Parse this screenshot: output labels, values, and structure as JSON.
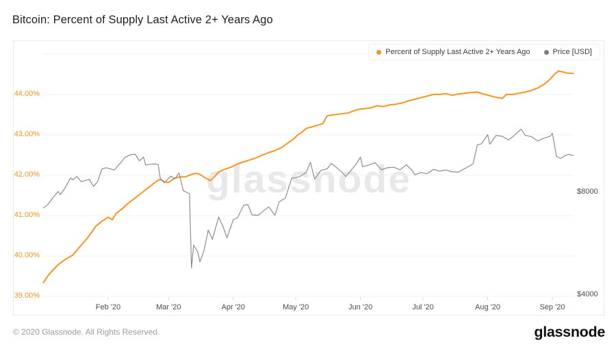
{
  "page": {
    "title": "Bitcoin: Percent of Supply Last Active 2+ Years Ago",
    "watermark": "glassnode",
    "footer": {
      "copyright": "© 2020 Glassnode. All Rights Reserved.",
      "brand": "glassnode"
    }
  },
  "legend": {
    "items": [
      {
        "label": "Percent of Supply Last Active 2+ Years Ago",
        "color": "#f7941c"
      },
      {
        "label": "Price [USD]",
        "color": "#7d7d7d"
      }
    ]
  },
  "chart_data": {
    "type": "line",
    "title": "Bitcoin: Percent of Supply Last Active 2+ Years Ago",
    "x_unit": "days since 2020-01-01",
    "x_range": [
      "2020-01-01",
      "2020-09-11"
    ],
    "grid": "horizontal-only",
    "legend_position": "top-right",
    "x_ticks": [
      {
        "day": 31,
        "label": "Feb '20"
      },
      {
        "day": 60,
        "label": "Mar '20"
      },
      {
        "day": 91,
        "label": "Apr '20"
      },
      {
        "day": 121,
        "label": "May '20"
      },
      {
        "day": 152,
        "label": "Jun '20"
      },
      {
        "day": 182,
        "label": "Jul '20"
      },
      {
        "day": 213,
        "label": "Aug '20"
      },
      {
        "day": 244,
        "label": "Sep '20"
      }
    ],
    "y_left": {
      "title": "Percent of Supply Last Active 2+ Years Ago",
      "range": [
        38.95,
        45.0
      ],
      "gridlines": [
        39,
        40,
        41,
        42,
        43,
        44,
        45
      ],
      "ticks": [
        {
          "value": 39,
          "label": "39.00%"
        },
        {
          "value": 40,
          "label": "40.00%"
        },
        {
          "value": 41,
          "label": "41.00%"
        },
        {
          "value": 42,
          "label": "42.00%"
        },
        {
          "value": 43,
          "label": "43.00%"
        },
        {
          "value": 44,
          "label": "44.00%"
        }
      ]
    },
    "y_right": {
      "title": "Price [USD]",
      "scale": "log2",
      "ticks": [
        {
          "value": 8000,
          "label": "$8000"
        },
        {
          "value": 4000,
          "label": "$4000"
        }
      ]
    },
    "series": [
      {
        "name": "Percent of Supply Last Active 2+ Years Ago",
        "axis": "left",
        "color": "#f7941c",
        "width": 2,
        "points": [
          [
            0,
            39.34
          ],
          [
            2,
            39.5
          ],
          [
            4,
            39.62
          ],
          [
            7,
            39.78
          ],
          [
            9,
            39.86
          ],
          [
            11,
            39.93
          ],
          [
            14,
            40.02
          ],
          [
            16,
            40.14
          ],
          [
            18,
            40.26
          ],
          [
            21,
            40.44
          ],
          [
            23,
            40.58
          ],
          [
            25,
            40.73
          ],
          [
            28,
            40.86
          ],
          [
            31,
            40.96
          ],
          [
            33,
            40.9
          ],
          [
            35,
            41.06
          ],
          [
            38,
            41.18
          ],
          [
            40,
            41.28
          ],
          [
            42,
            41.36
          ],
          [
            45,
            41.48
          ],
          [
            47,
            41.56
          ],
          [
            50,
            41.68
          ],
          [
            52,
            41.76
          ],
          [
            54,
            41.84
          ],
          [
            56,
            41.9
          ],
          [
            58,
            41.83
          ],
          [
            60,
            41.82
          ],
          [
            63,
            41.93
          ],
          [
            66,
            41.96
          ],
          [
            68,
            41.96
          ],
          [
            70,
            42.0
          ],
          [
            73,
            42.05
          ],
          [
            75,
            42.02
          ],
          [
            77,
            41.95
          ],
          [
            80,
            41.87
          ],
          [
            82,
            41.96
          ],
          [
            84,
            42.08
          ],
          [
            87,
            42.15
          ],
          [
            90,
            42.2
          ],
          [
            93,
            42.28
          ],
          [
            96,
            42.33
          ],
          [
            99,
            42.38
          ],
          [
            102,
            42.43
          ],
          [
            105,
            42.5
          ],
          [
            108,
            42.56
          ],
          [
            111,
            42.61
          ],
          [
            114,
            42.68
          ],
          [
            117,
            42.79
          ],
          [
            120,
            42.9
          ],
          [
            122,
            43.0
          ],
          [
            124,
            43.07
          ],
          [
            126,
            43.16
          ],
          [
            129,
            43.2
          ],
          [
            132,
            43.25
          ],
          [
            134,
            43.28
          ],
          [
            136,
            43.47
          ],
          [
            138,
            43.49
          ],
          [
            140,
            43.5
          ],
          [
            143,
            43.52
          ],
          [
            146,
            43.54
          ],
          [
            148,
            43.58
          ],
          [
            151,
            43.63
          ],
          [
            154,
            43.65
          ],
          [
            157,
            43.67
          ],
          [
            160,
            43.72
          ],
          [
            163,
            43.7
          ],
          [
            166,
            43.74
          ],
          [
            169,
            43.76
          ],
          [
            172,
            43.79
          ],
          [
            175,
            43.84
          ],
          [
            178,
            43.88
          ],
          [
            181,
            43.92
          ],
          [
            184,
            43.96
          ],
          [
            187,
            44.0
          ],
          [
            190,
            44.0
          ],
          [
            193,
            44.02
          ],
          [
            196,
            43.98
          ],
          [
            199,
            44.01
          ],
          [
            202,
            44.03
          ],
          [
            205,
            44.05
          ],
          [
            208,
            44.06
          ],
          [
            211,
            44.01
          ],
          [
            214,
            43.97
          ],
          [
            217,
            43.93
          ],
          [
            220,
            43.9
          ],
          [
            222,
            44.0
          ],
          [
            225,
            44.0
          ],
          [
            228,
            44.03
          ],
          [
            231,
            44.06
          ],
          [
            234,
            44.1
          ],
          [
            237,
            44.16
          ],
          [
            240,
            44.25
          ],
          [
            243,
            44.38
          ],
          [
            245,
            44.5
          ],
          [
            247,
            44.58
          ],
          [
            249,
            44.56
          ],
          [
            251,
            44.53
          ],
          [
            254,
            44.52
          ]
        ]
      },
      {
        "name": "Price [USD]",
        "axis": "right",
        "color": "#8c8c8c",
        "width": 1.2,
        "points": [
          [
            0,
            7200
          ],
          [
            2,
            7350
          ],
          [
            5,
            7770
          ],
          [
            7,
            8050
          ],
          [
            8,
            7870
          ],
          [
            10,
            8170
          ],
          [
            13,
            8820
          ],
          [
            14,
            8700
          ],
          [
            16,
            8900
          ],
          [
            18,
            8600
          ],
          [
            20,
            8660
          ],
          [
            22,
            8730
          ],
          [
            24,
            8330
          ],
          [
            26,
            8600
          ],
          [
            28,
            9360
          ],
          [
            30,
            9440
          ],
          [
            32,
            9380
          ],
          [
            34,
            9300
          ],
          [
            36,
            9620
          ],
          [
            37,
            9750
          ],
          [
            39,
            10120
          ],
          [
            42,
            10330
          ],
          [
            44,
            10350
          ],
          [
            46,
            9900
          ],
          [
            48,
            10150
          ],
          [
            49,
            9620
          ],
          [
            51,
            9660
          ],
          [
            53,
            9690
          ],
          [
            55,
            9650
          ],
          [
            56,
            8800
          ],
          [
            58,
            8530
          ],
          [
            61,
            8920
          ],
          [
            63,
            8760
          ],
          [
            65,
            9120
          ],
          [
            67,
            8100
          ],
          [
            70,
            7910
          ],
          [
            71,
            4800
          ],
          [
            72,
            5600
          ],
          [
            74,
            5350
          ],
          [
            75,
            5000
          ],
          [
            77,
            5400
          ],
          [
            79,
            6200
          ],
          [
            81,
            5820
          ],
          [
            84,
            6770
          ],
          [
            86,
            6380
          ],
          [
            88,
            5880
          ],
          [
            91,
            6650
          ],
          [
            93,
            6740
          ],
          [
            96,
            7330
          ],
          [
            98,
            7360
          ],
          [
            100,
            6870
          ],
          [
            103,
            6850
          ],
          [
            106,
            7100
          ],
          [
            108,
            7250
          ],
          [
            111,
            6850
          ],
          [
            113,
            7500
          ],
          [
            116,
            7700
          ],
          [
            119,
            8800
          ],
          [
            121,
            8830
          ],
          [
            123,
            8900
          ],
          [
            126,
            9150
          ],
          [
            128,
            9800
          ],
          [
            130,
            8750
          ],
          [
            133,
            9270
          ],
          [
            136,
            9380
          ],
          [
            138,
            9720
          ],
          [
            140,
            9520
          ],
          [
            143,
            9180
          ],
          [
            145,
            8900
          ],
          [
            147,
            9200
          ],
          [
            150,
            9700
          ],
          [
            152,
            10150
          ],
          [
            153,
            9520
          ],
          [
            156,
            9620
          ],
          [
            159,
            9770
          ],
          [
            162,
            9320
          ],
          [
            165,
            9450
          ],
          [
            168,
            9480
          ],
          [
            171,
            9310
          ],
          [
            174,
            9630
          ],
          [
            177,
            9250
          ],
          [
            178,
            9010
          ],
          [
            181,
            9140
          ],
          [
            184,
            9070
          ],
          [
            187,
            9340
          ],
          [
            190,
            9230
          ],
          [
            193,
            9300
          ],
          [
            196,
            9190
          ],
          [
            199,
            9170
          ],
          [
            202,
            9390
          ],
          [
            204,
            9530
          ],
          [
            206,
            9700
          ],
          [
            208,
            11020
          ],
          [
            210,
            11100
          ],
          [
            213,
            11800
          ],
          [
            214,
            11070
          ],
          [
            217,
            11740
          ],
          [
            220,
            11680
          ],
          [
            223,
            11390
          ],
          [
            226,
            11780
          ],
          [
            229,
            12250
          ],
          [
            231,
            11750
          ],
          [
            234,
            11650
          ],
          [
            237,
            11320
          ],
          [
            240,
            11530
          ],
          [
            243,
            11680
          ],
          [
            244,
            11920
          ],
          [
            246,
            10200
          ],
          [
            248,
            10050
          ],
          [
            250,
            10250
          ],
          [
            252,
            10350
          ],
          [
            254,
            10240
          ]
        ]
      }
    ]
  }
}
